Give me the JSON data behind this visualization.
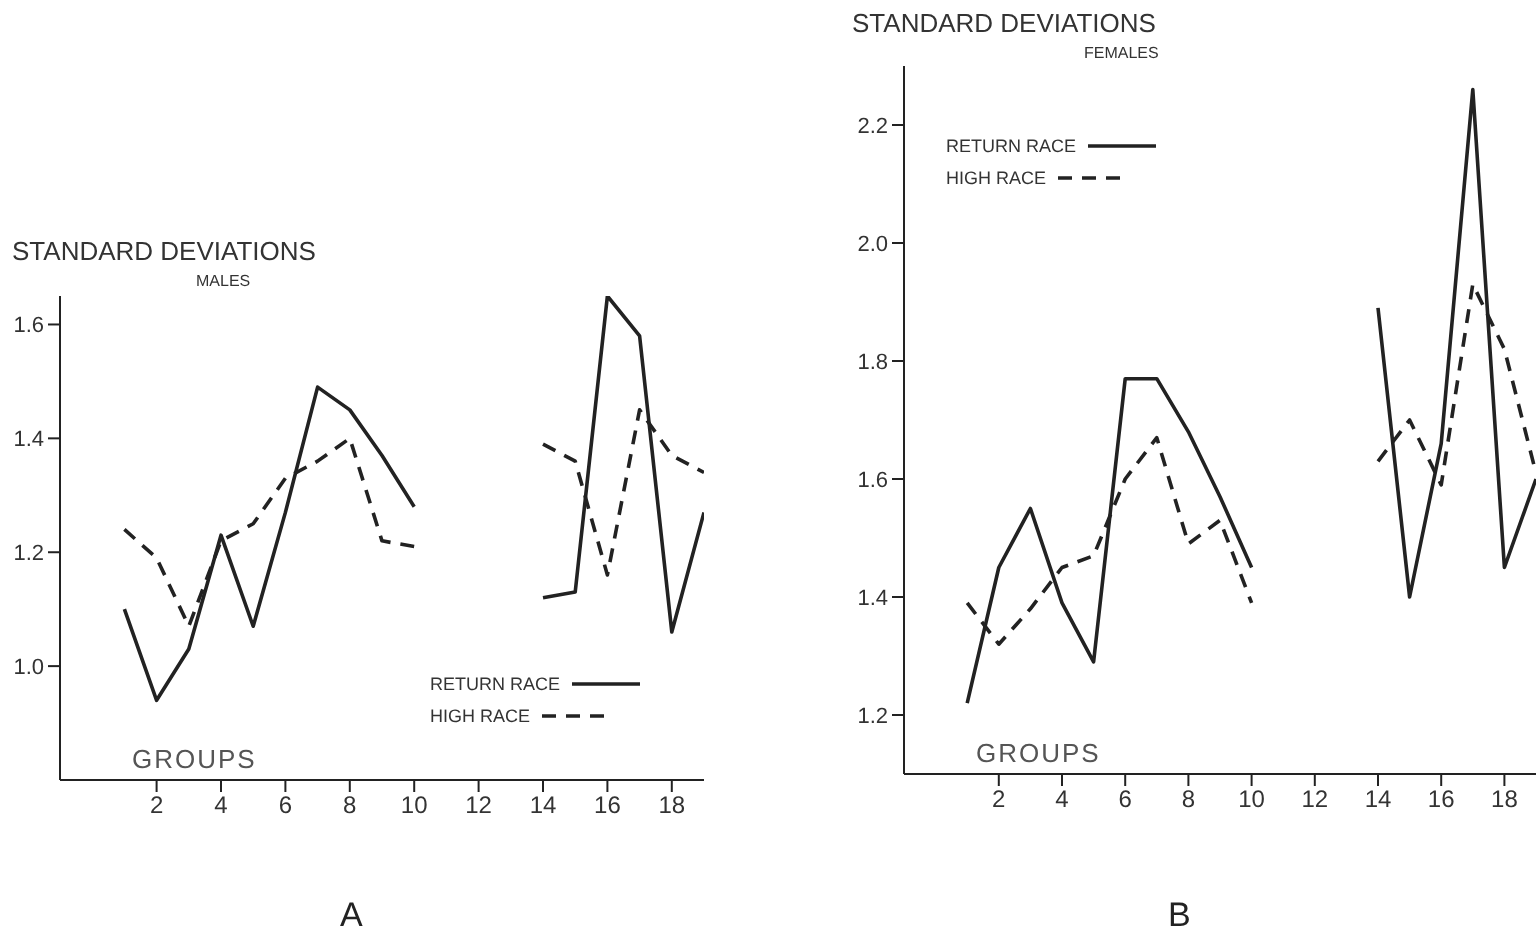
{
  "chart_data": [
    {
      "type": "line",
      "title": "STANDARD DEVIATIONS",
      "subtitle": "MALES",
      "xlabel": "GROUPS",
      "annotations": [
        "A"
      ],
      "x": [
        1,
        2,
        3,
        4,
        5,
        6,
        7,
        8,
        9,
        10,
        11,
        12,
        13,
        14,
        15,
        16,
        17,
        18,
        19
      ],
      "series": [
        {
          "name": "RETURN RACE",
          "color": "#222222",
          "line_style": "solid",
          "values": [
            1.1,
            0.94,
            1.03,
            1.23,
            1.07,
            1.27,
            1.49,
            1.45,
            1.37,
            1.28,
            null,
            null,
            null,
            1.12,
            1.13,
            1.65,
            1.58,
            1.06,
            1.27
          ]
        },
        {
          "name": "HIGH RACE",
          "color": "#222222",
          "line_style": "dashed",
          "values": [
            1.24,
            1.19,
            1.07,
            1.22,
            1.25,
            1.33,
            1.36,
            1.4,
            1.22,
            1.21,
            null,
            null,
            null,
            1.39,
            1.36,
            1.16,
            1.45,
            1.37,
            1.34
          ]
        }
      ],
      "xlim": [
        -1,
        19
      ],
      "xticks": [
        2,
        4,
        6,
        8,
        10,
        12,
        14,
        16,
        18
      ],
      "ylim": [
        0.8,
        1.65
      ],
      "yticks": [
        {
          "value": 1,
          "label": "1.0"
        },
        1.2,
        1.4,
        1.6
      ],
      "marker": "none",
      "grid": false,
      "legend": "bottom right"
    },
    {
      "type": "line",
      "title": "STANDARD DEVIATIONS",
      "subtitle": "FEMALES",
      "xlabel": "GROUPS",
      "annotations": [
        "B"
      ],
      "x": [
        1,
        2,
        3,
        4,
        5,
        6,
        7,
        8,
        9,
        10,
        11,
        12,
        13,
        14,
        15,
        16,
        17,
        18,
        19
      ],
      "series": [
        {
          "name": "RETURN RACE",
          "color": "#222222",
          "line_style": "solid",
          "values": [
            1.22,
            1.45,
            1.55,
            1.39,
            1.29,
            1.77,
            1.77,
            1.68,
            1.57,
            1.45,
            null,
            null,
            null,
            1.89,
            1.4,
            1.66,
            2.26,
            1.45,
            1.6
          ]
        },
        {
          "name": "HIGH RACE",
          "color": "#222222",
          "line_style": "dashed",
          "values": [
            1.39,
            1.32,
            1.38,
            1.45,
            1.47,
            1.6,
            1.67,
            1.49,
            1.53,
            1.39,
            null,
            null,
            null,
            1.63,
            1.7,
            1.59,
            1.93,
            1.82,
            1.61
          ]
        }
      ],
      "xlim": [
        -1,
        19
      ],
      "xticks": [
        2,
        4,
        6,
        8,
        10,
        12,
        14,
        16,
        18
      ],
      "ylim": [
        1.1,
        2.3
      ],
      "yticks": [
        1.2,
        1.4,
        1.6,
        1.8,
        {
          "value": 2,
          "label": "2.0"
        },
        2.2
      ],
      "marker": "none",
      "grid": false,
      "legend": "top left"
    }
  ]
}
